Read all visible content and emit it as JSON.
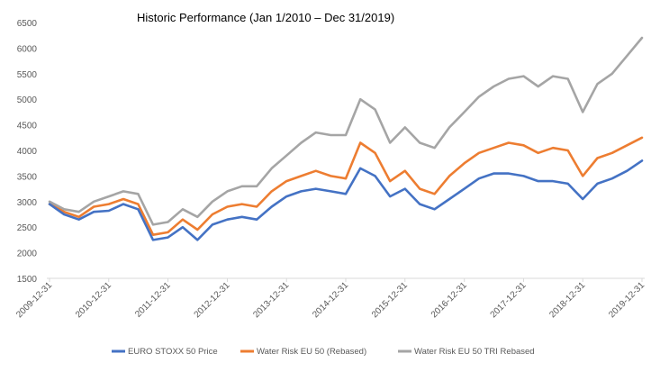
{
  "chart_data": {
    "type": "line",
    "title": "Historic Performance (Jan 1/2010 – Dec 31/2019)",
    "xlabel": "",
    "ylabel": "",
    "ylim": [
      1500,
      6500
    ],
    "y_ticks": [
      "1500",
      "2000",
      "2500",
      "3000",
      "3500",
      "4000",
      "4500",
      "5000",
      "5500",
      "6000",
      "6500"
    ],
    "x_tick_labels": [
      "2009-12-31",
      "2010-12-31",
      "2011-12-31",
      "2012-12-31",
      "2013-12-31",
      "2014-12-31",
      "2015-12-31",
      "2016-12-31",
      "2017-12-31",
      "2018-12-31",
      "2019-12-31"
    ],
    "grid": false,
    "legend_position": "bottom",
    "x": [
      "2009-12-31",
      "2010-03-31",
      "2010-06-30",
      "2010-09-30",
      "2010-12-31",
      "2011-03-31",
      "2011-06-30",
      "2011-09-30",
      "2011-12-31",
      "2012-03-31",
      "2012-06-30",
      "2012-09-30",
      "2012-12-31",
      "2013-03-31",
      "2013-06-30",
      "2013-09-30",
      "2013-12-31",
      "2014-03-31",
      "2014-06-30",
      "2014-09-30",
      "2014-12-31",
      "2015-03-31",
      "2015-06-30",
      "2015-09-30",
      "2015-12-31",
      "2016-03-31",
      "2016-06-30",
      "2016-09-30",
      "2016-12-31",
      "2017-03-31",
      "2017-06-30",
      "2017-09-30",
      "2017-12-31",
      "2018-03-31",
      "2018-06-30",
      "2018-09-30",
      "2018-12-31",
      "2019-03-31",
      "2019-06-30",
      "2019-09-30",
      "2019-12-31"
    ],
    "series": [
      {
        "name": "EURO STOXX 50 Price",
        "color": "#4472c4",
        "values": [
          2950,
          2750,
          2650,
          2800,
          2820,
          2950,
          2850,
          2250,
          2300,
          2500,
          2250,
          2550,
          2650,
          2700,
          2650,
          2900,
          3100,
          3200,
          3250,
          3200,
          3150,
          3650,
          3500,
          3100,
          3250,
          2950,
          2850,
          3050,
          3250,
          3450,
          3550,
          3550,
          3500,
          3400,
          3400,
          3350,
          3050,
          3350,
          3450,
          3600,
          3800
        ]
      },
      {
        "name": "Water Risk EU 50 (Rebased)",
        "color": "#ed7d31",
        "values": [
          2950,
          2800,
          2700,
          2900,
          2950,
          3050,
          2950,
          2350,
          2400,
          2650,
          2450,
          2750,
          2900,
          2950,
          2900,
          3200,
          3400,
          3500,
          3600,
          3500,
          3450,
          4150,
          3950,
          3400,
          3600,
          3250,
          3150,
          3500,
          3750,
          3950,
          4050,
          4150,
          4100,
          3950,
          4050,
          4000,
          3500,
          3850,
          3950,
          4100,
          4250
        ]
      },
      {
        "name": "Water Risk EU 50 TRI Rebased",
        "color": "#a5a5a5",
        "values": [
          3000,
          2850,
          2800,
          3000,
          3100,
          3200,
          3150,
          2550,
          2600,
          2850,
          2700,
          3000,
          3200,
          3300,
          3300,
          3650,
          3900,
          4150,
          4350,
          4300,
          4300,
          5000,
          4800,
          4150,
          4450,
          4150,
          4050,
          4450,
          4750,
          5050,
          5250,
          5400,
          5450,
          5250,
          5450,
          5400,
          4750,
          5300,
          5500,
          5850,
          6200
        ]
      }
    ]
  }
}
